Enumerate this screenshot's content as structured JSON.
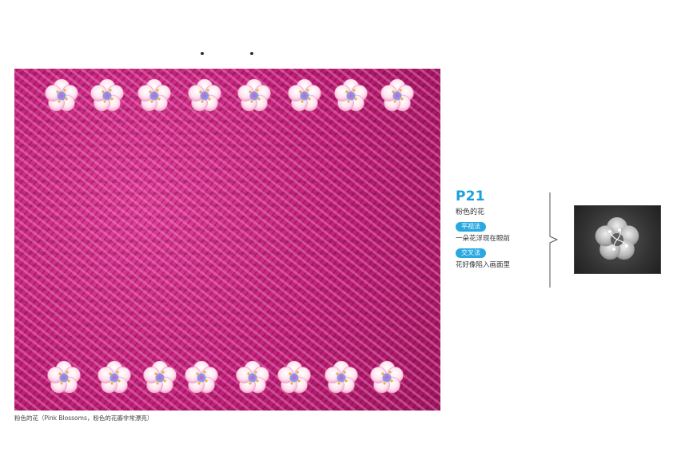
{
  "caption": "粉色的花（Pink Blossoms，粉色的花瓣非常漂亮）",
  "panel": {
    "page_number": "P21",
    "title": "粉色的花",
    "methods": [
      {
        "label": "平视法",
        "description": "一朵花浮现在眼前"
      },
      {
        "label": "交叉法",
        "description": "花好像陷入画面里"
      }
    ]
  },
  "colors": {
    "accent_blue": "#1aa0da",
    "badge_blue": "#29a9e0",
    "background_pink": "#c2207a"
  },
  "icons": [
    "blossom-icon",
    "brace-icon"
  ]
}
